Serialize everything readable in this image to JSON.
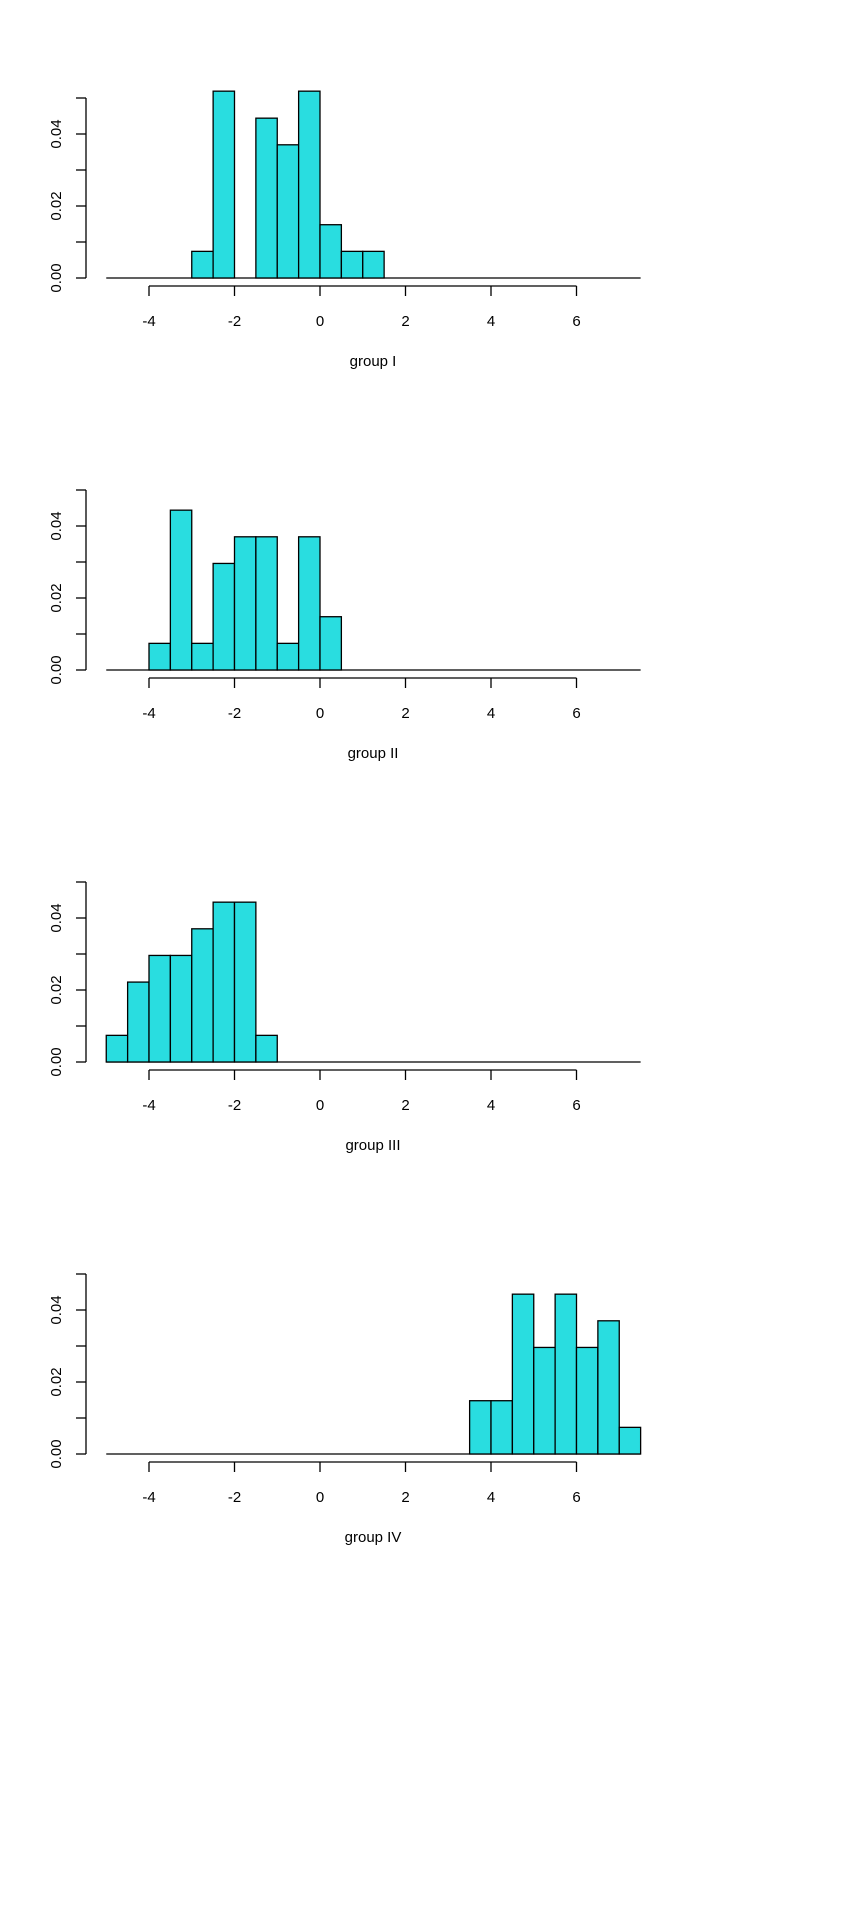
{
  "colors": {
    "bar_fill": "#29dde0",
    "bar_stroke": "#000000"
  },
  "chart_data": [
    {
      "type": "bar",
      "title": "",
      "xlabel": "group I",
      "ylabel": "",
      "bin_width": 0.5,
      "xlim": [
        -5,
        7.5
      ],
      "ylim": [
        0,
        0.05
      ],
      "x_ticks": [
        "-4",
        "-2",
        "0",
        "2",
        "4",
        "6"
      ],
      "y_ticks": [
        "0.00",
        "0.02",
        "0.04"
      ],
      "bins": [
        -3,
        -2.5,
        -2,
        -1.5,
        -1,
        -0.5,
        0,
        0.5,
        1
      ],
      "values": [
        0.0074,
        0.0519,
        0,
        0.0444,
        0.037,
        0.0519,
        0.0148,
        0.0074,
        0.0074
      ]
    },
    {
      "type": "bar",
      "title": "",
      "xlabel": "group II",
      "ylabel": "",
      "bin_width": 0.5,
      "xlim": [
        -5,
        7.5
      ],
      "ylim": [
        0,
        0.05
      ],
      "x_ticks": [
        "-4",
        "-2",
        "0",
        "2",
        "4",
        "6"
      ],
      "y_ticks": [
        "0.00",
        "0.02",
        "0.04"
      ],
      "bins": [
        -4,
        -3.5,
        -3,
        -2.5,
        -2,
        -1.5,
        -1,
        -0.5,
        0
      ],
      "values": [
        0.0074,
        0.0444,
        0.0074,
        0.0296,
        0.037,
        0.037,
        0.0074,
        0.037,
        0.0148
      ]
    },
    {
      "type": "bar",
      "title": "",
      "xlabel": "group III",
      "ylabel": "",
      "bin_width": 0.5,
      "xlim": [
        -5,
        7.5
      ],
      "ylim": [
        0,
        0.05
      ],
      "x_ticks": [
        "-4",
        "-2",
        "0",
        "2",
        "4",
        "6"
      ],
      "y_ticks": [
        "0.00",
        "0.02",
        "0.04"
      ],
      "bins": [
        -5,
        -4.5,
        -4,
        -3.5,
        -3,
        -2.5,
        -2,
        -1.5
      ],
      "values": [
        0.0074,
        0.0222,
        0.0296,
        0.0296,
        0.037,
        0.0444,
        0.0444,
        0.0074
      ]
    },
    {
      "type": "bar",
      "title": "",
      "xlabel": "group IV",
      "ylabel": "",
      "bin_width": 0.5,
      "xlim": [
        -5,
        7.5
      ],
      "ylim": [
        0,
        0.05
      ],
      "x_ticks": [
        "-4",
        "-2",
        "0",
        "2",
        "4",
        "6"
      ],
      "y_ticks": [
        "0.00",
        "0.02",
        "0.04"
      ],
      "bins": [
        3.5,
        4,
        4.5,
        5,
        5.5,
        6,
        6.5,
        7
      ],
      "values": [
        0.0148,
        0.0148,
        0.0444,
        0.0296,
        0.0444,
        0.0296,
        0.037,
        0.0074
      ]
    }
  ]
}
